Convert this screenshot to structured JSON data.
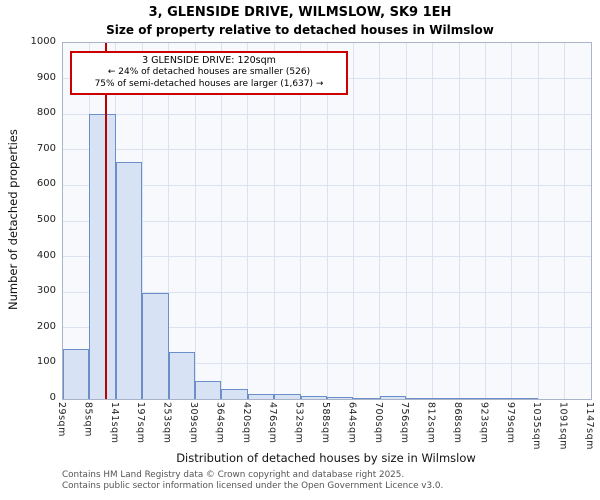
{
  "title": "3, GLENSIDE DRIVE, WILMSLOW, SK9 1EH",
  "subtitle": "Size of property relative to detached houses in Wilmslow",
  "annotation": {
    "line1": "3 GLENSIDE DRIVE: 120sqm",
    "line2": "← 24% of detached houses are smaller (526)",
    "line3": "75% of semi-detached houses are larger (1,637) →"
  },
  "chart_data": {
    "type": "bar",
    "title": "3, GLENSIDE DRIVE, WILMSLOW, SK9 1EH",
    "subtitle": "Size of property relative to detached houses in Wilmslow",
    "xlabel": "Distribution of detached houses by size in Wilmslow",
    "ylabel": "Number of detached properties",
    "ylim": [
      0,
      1000
    ],
    "ytick_step": 100,
    "grid": true,
    "axis": {
      "min": 29,
      "max": 1147
    },
    "bin_edge_labels": [
      "29sqm",
      "85sqm",
      "141sqm",
      "197sqm",
      "253sqm",
      "309sqm",
      "364sqm",
      "420sqm",
      "476sqm",
      "532sqm",
      "588sqm",
      "644sqm",
      "700sqm",
      "756sqm",
      "812sqm",
      "868sqm",
      "923sqm",
      "979sqm",
      "1035sqm",
      "1091sqm",
      "1147sqm"
    ],
    "values": [
      140,
      800,
      665,
      297,
      133,
      50,
      27,
      15,
      13,
      8,
      5,
      4,
      8,
      3,
      2,
      2,
      1,
      1,
      0,
      0
    ],
    "marker": {
      "value": 120,
      "label": "120sqm",
      "color": "#bb0000"
    },
    "colors": {
      "bar_fill": "#d7e2f4",
      "bar_border": "#6d8fc9",
      "grid": "#dbe2f0",
      "plot_bg": "#f7f9fd"
    }
  },
  "footer": {
    "line1": "Contains HM Land Registry data © Crown copyright and database right 2025.",
    "line2": "Contains public sector information licensed under the Open Government Licence v3.0."
  }
}
